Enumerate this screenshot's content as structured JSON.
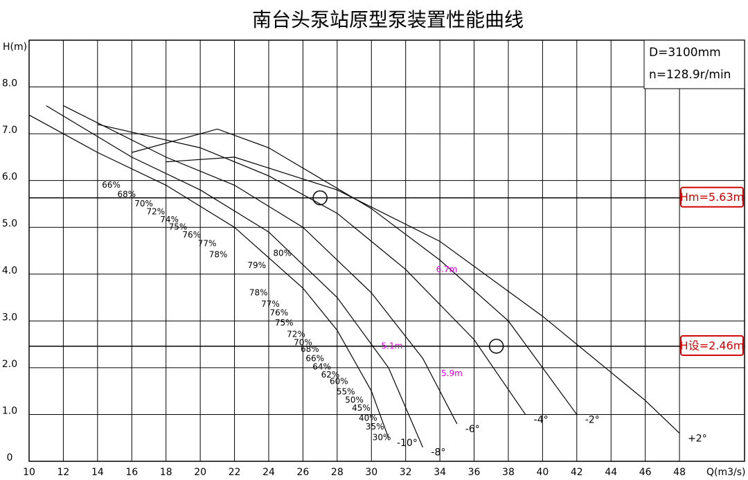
{
  "chart_data": {
    "type": "line",
    "title": "南台头泵站原型泵装置性能曲线",
    "y_label": "H(m)",
    "x_label": "Q(m3/s)",
    "xlim": [
      10,
      51.8
    ],
    "ylim": [
      0,
      9
    ],
    "xticks": [
      10,
      12,
      14,
      16,
      18,
      20,
      22,
      24,
      26,
      28,
      30,
      32,
      34,
      36,
      38,
      40,
      42,
      44,
      46,
      48
    ],
    "yticks": [
      {
        "value": 0,
        "label": "0"
      },
      {
        "value": 1,
        "label": "1.0"
      },
      {
        "value": 2,
        "label": "2.0"
      },
      {
        "value": 3,
        "label": "3.0"
      },
      {
        "value": 4,
        "label": "4.0"
      },
      {
        "value": 5,
        "label": "5.0"
      },
      {
        "value": 6,
        "label": "6.0"
      },
      {
        "value": 7,
        "label": "7.0"
      },
      {
        "value": 8,
        "label": "8.0"
      }
    ],
    "grid": true,
    "info": [
      "D=3100mm",
      "n=128.9r/min"
    ],
    "series": [
      {
        "name": "-10°",
        "color": "#000000",
        "x": [
          10,
          14,
          18,
          22,
          26,
          28,
          30,
          31
        ],
        "values": [
          7.4,
          6.6,
          5.9,
          5.0,
          3.7,
          2.8,
          1.5,
          0.5
        ]
      },
      {
        "name": "-8°",
        "color": "#000000",
        "x": [
          11,
          16,
          20,
          24,
          28,
          31,
          33
        ],
        "values": [
          7.6,
          6.5,
          5.8,
          4.9,
          3.5,
          2.0,
          0.3
        ]
      },
      {
        "name": "-6°",
        "color": "#000000",
        "x": [
          12,
          18,
          22,
          26,
          30,
          33,
          35
        ],
        "values": [
          7.6,
          6.5,
          5.9,
          5.0,
          3.6,
          2.2,
          0.8
        ]
      },
      {
        "name": "-4°",
        "color": "#000000",
        "x": [
          14,
          20,
          24,
          28,
          32,
          36,
          39
        ],
        "values": [
          7.2,
          6.7,
          6.1,
          5.3,
          4.1,
          2.6,
          1.0
        ]
      },
      {
        "name": "-2°",
        "color": "#000000",
        "x": [
          16,
          21,
          24,
          30,
          34,
          38,
          42
        ],
        "values": [
          6.6,
          7.1,
          6.7,
          5.4,
          4.3,
          3.0,
          1.0
        ]
      },
      {
        "name": "+2°",
        "color": "#000000",
        "x": [
          18,
          22,
          28,
          34,
          40,
          46,
          48
        ],
        "values": [
          6.4,
          6.5,
          5.8,
          4.7,
          3.1,
          1.3,
          0.6
        ]
      }
    ],
    "reference_lines": [
      {
        "label": "Hm=5.63m",
        "value": 5.63,
        "color": "#d00000"
      },
      {
        "label": "H设=2.46m",
        "value": 2.46,
        "color": "#d00000"
      }
    ],
    "design_points": [
      {
        "x": 27,
        "y": 5.63
      },
      {
        "x": 37.3,
        "y": 2.46
      }
    ],
    "annotations": [
      {
        "text": "66%",
        "x": 14.8,
        "y": 5.9
      },
      {
        "text": "68%",
        "x": 15.7,
        "y": 5.7
      },
      {
        "text": "70%",
        "x": 16.7,
        "y": 5.5
      },
      {
        "text": "72%",
        "x": 17.4,
        "y": 5.33
      },
      {
        "text": "74%",
        "x": 18.2,
        "y": 5.16
      },
      {
        "text": "75%",
        "x": 18.7,
        "y": 5.0
      },
      {
        "text": "76%",
        "x": 19.5,
        "y": 4.83
      },
      {
        "text": "77%",
        "x": 20.4,
        "y": 4.65
      },
      {
        "text": "78%",
        "x": 21.05,
        "y": 4.41
      },
      {
        "text": "80%",
        "x": 24.8,
        "y": 4.44
      },
      {
        "text": "79%",
        "x": 23.3,
        "y": 4.18
      },
      {
        "text": "78%",
        "x": 23.4,
        "y": 3.6
      },
      {
        "text": "77%",
        "x": 24.1,
        "y": 3.35
      },
      {
        "text": "76%",
        "x": 24.6,
        "y": 3.17
      },
      {
        "text": "75%",
        "x": 24.9,
        "y": 2.95
      },
      {
        "text": "72%",
        "x": 25.6,
        "y": 2.71
      },
      {
        "text": "70%",
        "x": 26.0,
        "y": 2.53
      },
      {
        "text": "68%",
        "x": 26.4,
        "y": 2.39
      },
      {
        "text": "66%",
        "x": 26.7,
        "y": 2.19
      },
      {
        "text": "64%",
        "x": 27.1,
        "y": 2.01
      },
      {
        "text": "62%",
        "x": 27.6,
        "y": 1.84
      },
      {
        "text": "60%",
        "x": 28.1,
        "y": 1.7
      },
      {
        "text": "55%",
        "x": 28.5,
        "y": 1.48
      },
      {
        "text": "50%",
        "x": 29.0,
        "y": 1.3
      },
      {
        "text": "45%",
        "x": 29.4,
        "y": 1.13
      },
      {
        "text": "40%",
        "x": 29.8,
        "y": 0.92
      },
      {
        "text": "35%",
        "x": 30.2,
        "y": 0.73
      },
      {
        "text": "30%",
        "x": 30.6,
        "y": 0.5
      },
      {
        "text": "6.7m",
        "x": 34.4,
        "y": 4.09,
        "color": "#e000e0"
      },
      {
        "text": "5.1m",
        "x": 31.2,
        "y": 2.46,
        "color": "#e000e0"
      },
      {
        "text": "5.9m",
        "x": 34.7,
        "y": 1.87,
        "color": "#e000e0"
      }
    ]
  }
}
